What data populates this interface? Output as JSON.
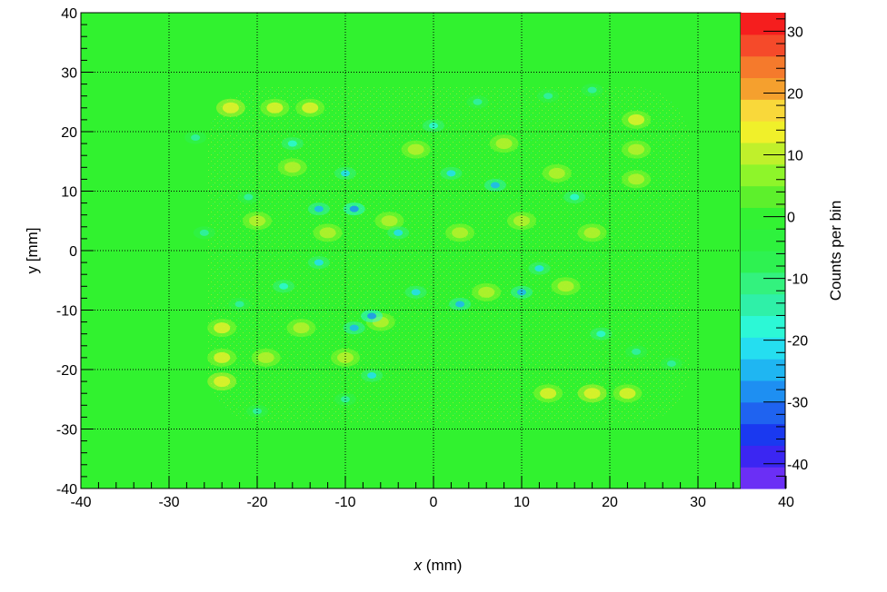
{
  "chart_data": {
    "type": "heatmap",
    "title": "",
    "xlabel_var": "x",
    "xlabel_unit": " (mm)",
    "ylabel": "y [mm]",
    "zlabel": "Counts per bin",
    "xlim": [
      -40,
      40
    ],
    "ylim": [
      -40,
      40
    ],
    "x_plot_max": 35,
    "zlim": [
      -44,
      33
    ],
    "xticks": [
      -40,
      -30,
      -20,
      -10,
      0,
      10,
      20,
      30,
      40
    ],
    "yticks": [
      -40,
      -30,
      -20,
      -10,
      0,
      10,
      20,
      30,
      40
    ],
    "zticks": [
      -40,
      -30,
      -20,
      -10,
      0,
      10,
      20,
      30
    ],
    "x_tick_labels": [
      "-40",
      "-30",
      "-20",
      "-10",
      "0",
      "10",
      "20",
      "30",
      "40"
    ],
    "y_tick_labels": [
      "-40",
      "-30",
      "-20",
      "-10",
      "0",
      "10",
      "20",
      "30",
      "40"
    ],
    "z_tick_labels": [
      "-40",
      "-30",
      "-20",
      "-10",
      "0",
      "10",
      "20",
      "30"
    ],
    "grid": true,
    "background_value": 0,
    "palette": [
      "#6b2ff5",
      "#3b26f2",
      "#1a39f0",
      "#1f63f0",
      "#1e8ff2",
      "#1fb6f2",
      "#25def0",
      "#2cf8d6",
      "#2ff0a8",
      "#33f27e",
      "#2ef251",
      "#2ef23d",
      "#33f233",
      "#5df02c",
      "#8ef52a",
      "#c0f02b",
      "#f0f02a",
      "#f9d83a",
      "#f5a02e",
      "#f57a2c",
      "#f54a2a",
      "#f51e1e"
    ],
    "hot_spots": [
      {
        "x": -23,
        "y": 24,
        "value": 14
      },
      {
        "x": -18,
        "y": 24,
        "value": 12
      },
      {
        "x": -14,
        "y": 24,
        "value": 12
      },
      {
        "x": 23,
        "y": 22,
        "value": 12
      },
      {
        "x": 23,
        "y": 17,
        "value": 10
      },
      {
        "x": 23,
        "y": 12,
        "value": 10
      },
      {
        "x": -24,
        "y": -13,
        "value": 12
      },
      {
        "x": -24,
        "y": -18,
        "value": 12
      },
      {
        "x": -24,
        "y": -22,
        "value": 14
      },
      {
        "x": -19,
        "y": -18,
        "value": 10
      },
      {
        "x": -15,
        "y": -13,
        "value": 10
      },
      {
        "x": -10,
        "y": -18,
        "value": 10
      },
      {
        "x": 13,
        "y": -24,
        "value": 12
      },
      {
        "x": 18,
        "y": -24,
        "value": 14
      },
      {
        "x": 22,
        "y": -24,
        "value": 12
      },
      {
        "x": -20,
        "y": 5,
        "value": 10
      },
      {
        "x": -12,
        "y": 3,
        "value": 10
      },
      {
        "x": -5,
        "y": 5,
        "value": 10
      },
      {
        "x": 3,
        "y": 3,
        "value": 10
      },
      {
        "x": 10,
        "y": 5,
        "value": 10
      },
      {
        "x": 18,
        "y": 3,
        "value": 10
      },
      {
        "x": 8,
        "y": 18,
        "value": 10
      },
      {
        "x": -2,
        "y": 17,
        "value": 9
      },
      {
        "x": 14,
        "y": 13,
        "value": 9
      },
      {
        "x": 6,
        "y": -7,
        "value": 9
      },
      {
        "x": -6,
        "y": -12,
        "value": 9
      },
      {
        "x": 15,
        "y": -6,
        "value": 9
      },
      {
        "x": -16,
        "y": 14,
        "value": 9
      }
    ],
    "cold_spots": [
      {
        "x": -27,
        "y": 19,
        "value": -15
      },
      {
        "x": -26,
        "y": 3,
        "value": -15
      },
      {
        "x": -21,
        "y": 9,
        "value": -15
      },
      {
        "x": -16,
        "y": 18,
        "value": -18
      },
      {
        "x": -10,
        "y": 13,
        "value": -20
      },
      {
        "x": -13,
        "y": 7,
        "value": -25
      },
      {
        "x": -9,
        "y": 7,
        "value": -30
      },
      {
        "x": -13,
        "y": -2,
        "value": -20
      },
      {
        "x": -9,
        "y": -13,
        "value": -25
      },
      {
        "x": -7,
        "y": -11,
        "value": -30
      },
      {
        "x": -2,
        "y": -7,
        "value": -20
      },
      {
        "x": 3,
        "y": -9,
        "value": -25
      },
      {
        "x": 10,
        "y": -7,
        "value": -25
      },
      {
        "x": 12,
        "y": -3,
        "value": -20
      },
      {
        "x": 7,
        "y": 11,
        "value": -25
      },
      {
        "x": 2,
        "y": 13,
        "value": -20
      },
      {
        "x": 13,
        "y": 26,
        "value": -15
      },
      {
        "x": 18,
        "y": 27,
        "value": -15
      },
      {
        "x": 5,
        "y": 25,
        "value": -15
      },
      {
        "x": -7,
        "y": -21,
        "value": -20
      },
      {
        "x": -10,
        "y": -25,
        "value": -15
      },
      {
        "x": -20,
        "y": -27,
        "value": -15
      },
      {
        "x": 27,
        "y": -19,
        "value": -15
      },
      {
        "x": 23,
        "y": -17,
        "value": -15
      },
      {
        "x": -4,
        "y": 3,
        "value": -20
      },
      {
        "x": 16,
        "y": 9,
        "value": -18
      },
      {
        "x": -17,
        "y": -6,
        "value": -18
      },
      {
        "x": 19,
        "y": -14,
        "value": -18
      },
      {
        "x": -22,
        "y": -9,
        "value": -15
      },
      {
        "x": 0,
        "y": 21,
        "value": -18
      }
    ]
  }
}
